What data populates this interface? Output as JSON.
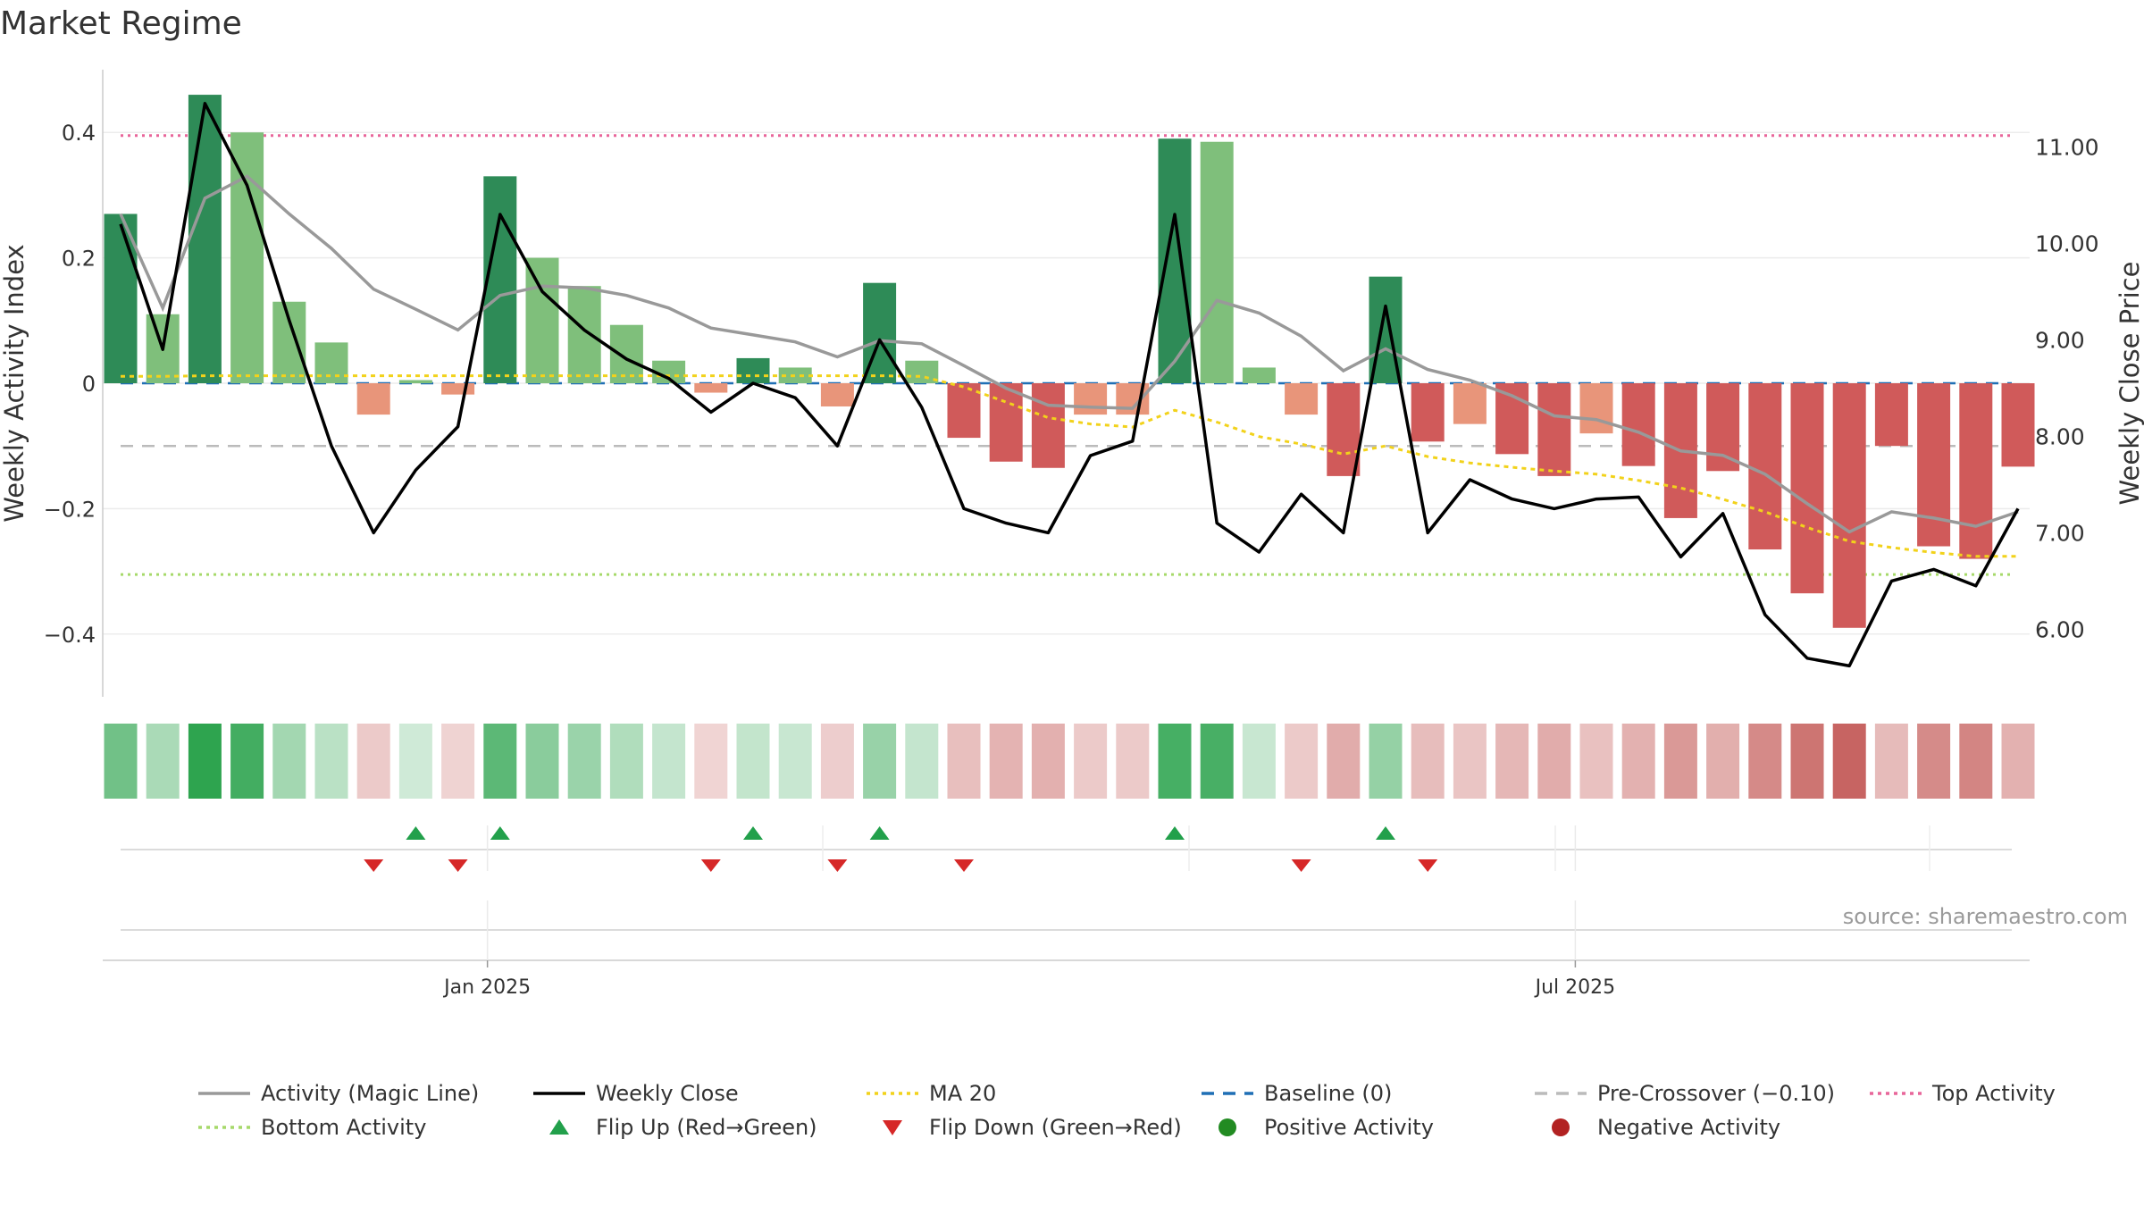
{
  "title": "Market Regime",
  "source": "source: sharemaestro.com",
  "chart_data": {
    "type": "bar",
    "xlabel": "",
    "ylabel": "Weekly Activity Index",
    "y2label": "Weekly Close Price",
    "ylim": [
      -0.5,
      0.5
    ],
    "y2lim": [
      5.3,
      11.8
    ],
    "yticks": [
      {
        "v": 0.4,
        "label": "0.4"
      },
      {
        "v": 0.2,
        "label": "0.2"
      },
      {
        "v": 0,
        "label": "0"
      },
      {
        "v": -0.2,
        "label": "−0.2"
      },
      {
        "v": -0.4,
        "label": "−0.4"
      }
    ],
    "y2ticks": [
      {
        "v": 11,
        "label": "11.00"
      },
      {
        "v": 10,
        "label": "10.00"
      },
      {
        "v": 9,
        "label": "9.00"
      },
      {
        "v": 8,
        "label": "8.00"
      },
      {
        "v": 7,
        "label": "7.00"
      },
      {
        "v": 6,
        "label": "6.00"
      }
    ],
    "xticks": [
      {
        "i": 8.7,
        "label": "Jan 2025"
      },
      {
        "i": 34.5,
        "label": "Jul 2025"
      }
    ],
    "bands": {
      "pre_crossover": -0.1,
      "top": 0.395,
      "bottom": -0.305,
      "baseline": 0
    },
    "activity": [
      0.27,
      0.11,
      0.46,
      0.4,
      0.13,
      0.065,
      -0.05,
      0.005,
      -0.018,
      0.33,
      0.2,
      0.155,
      0.093,
      0.036,
      -0.015,
      0.04,
      0.025,
      -0.037,
      0.16,
      0.036,
      -0.087,
      -0.125,
      -0.135,
      -0.05,
      -0.05,
      0.39,
      0.385,
      0.025,
      -0.05,
      -0.148,
      0.17,
      -0.093,
      -0.065,
      -0.113,
      -0.148,
      -0.08,
      -0.132,
      -0.215,
      -0.14,
      -0.265,
      -0.335,
      -0.39,
      -0.1,
      -0.26,
      -0.28,
      -0.133
    ],
    "magic_line": [
      0.27,
      0.12,
      0.295,
      0.33,
      0.27,
      0.215,
      0.15,
      0.118,
      0.085,
      0.14,
      0.155,
      0.152,
      0.14,
      0.12,
      0.088,
      0.077,
      0.066,
      0.042,
      0.068,
      0.063,
      0.028,
      -0.008,
      -0.035,
      -0.038,
      -0.04,
      0.035,
      0.132,
      0.112,
      0.075,
      0.02,
      0.055,
      0.022,
      0.005,
      -0.02,
      -0.052,
      -0.058,
      -0.078,
      -0.108,
      -0.115,
      -0.145,
      -0.192,
      -0.237,
      -0.205,
      -0.215,
      -0.228,
      -0.205
    ],
    "weekly_close": [
      10.2,
      8.9,
      11.45,
      10.6,
      9.2,
      7.9,
      7.0,
      7.65,
      8.1,
      10.3,
      9.5,
      9.1,
      8.8,
      8.6,
      8.25,
      8.55,
      8.4,
      7.9,
      9.0,
      8.3,
      7.25,
      7.1,
      7.0,
      7.8,
      7.95,
      10.3,
      7.1,
      6.8,
      7.4,
      7.0,
      9.35,
      7.0,
      7.55,
      7.35,
      7.25,
      7.35,
      7.37,
      6.75,
      7.2,
      6.15,
      5.7,
      5.62,
      6.5,
      6.62,
      6.45,
      7.25
    ],
    "ma20": [
      0.011,
      0.011,
      0.012,
      0.012,
      0.012,
      0.012,
      0.012,
      0.012,
      0.012,
      0.012,
      0.012,
      0.012,
      0.012,
      0.012,
      0.012,
      0.012,
      0.012,
      0.012,
      0.012,
      0.011,
      -0.006,
      -0.03,
      -0.055,
      -0.065,
      -0.07,
      -0.043,
      -0.062,
      -0.085,
      -0.097,
      -0.113,
      -0.1,
      -0.117,
      -0.127,
      -0.134,
      -0.14,
      -0.145,
      -0.155,
      -0.167,
      -0.185,
      -0.205,
      -0.23,
      -0.252,
      -0.262,
      -0.27,
      -0.276,
      -0.276
    ],
    "heat_strip": [
      0.27,
      0.11,
      0.46,
      0.4,
      0.13,
      0.065,
      -0.05,
      0.005,
      -0.018,
      0.33,
      0.2,
      0.155,
      0.093,
      0.036,
      -0.015,
      0.04,
      0.025,
      -0.037,
      0.16,
      0.036,
      -0.087,
      -0.125,
      -0.135,
      -0.05,
      -0.05,
      0.39,
      0.385,
      0.025,
      -0.05,
      -0.148,
      0.17,
      -0.093,
      -0.065,
      -0.113,
      -0.148,
      -0.08,
      -0.132,
      -0.215,
      -0.14,
      -0.265,
      -0.335,
      -0.39,
      -0.1,
      -0.26,
      -0.28,
      -0.133
    ],
    "flip_up": [
      7,
      9,
      15,
      18,
      25,
      30
    ],
    "flip_down": [
      6,
      8,
      14,
      17,
      20,
      28,
      31
    ],
    "colors": {
      "pos_strong": "#2e8b57",
      "pos_weak": "#7fbf7b",
      "neg_strong": "#d05a5a",
      "neg_weak": "#e8957a",
      "magic_line": "#999999",
      "weekly_close": "#000000",
      "ma20": "#f2d21b",
      "baseline": "#1f6fb5",
      "pre_crossover": "#bbbbbb",
      "top": "#e8669a",
      "bottom": "#a6d96a",
      "flip_up": "#22a04b",
      "flip_down": "#d62828",
      "positive_dot": "#228b22",
      "negative_dot": "#b22222"
    },
    "legend": [
      {
        "label": "Activity (Magic Line)",
        "kind": "line",
        "color": "#999999"
      },
      {
        "label": "Weekly Close",
        "kind": "line",
        "color": "#000000"
      },
      {
        "label": "MA 20",
        "kind": "dotted",
        "color": "#f2d21b"
      },
      {
        "label": "Baseline (0)",
        "kind": "dashed",
        "color": "#1f6fb5"
      },
      {
        "label": "Pre-Crossover (−0.10)",
        "kind": "dashed",
        "color": "#bbbbbb"
      },
      {
        "label": "Top Activity",
        "kind": "dotted",
        "color": "#e8669a"
      },
      {
        "label": "Bottom Activity",
        "kind": "dotted",
        "color": "#a6d96a"
      },
      {
        "label": "Flip Up (Red→Green)",
        "kind": "tri-up",
        "color": "#22a04b"
      },
      {
        "label": "Flip Down (Green→Red)",
        "kind": "tri-down",
        "color": "#d62828"
      },
      {
        "label": "Positive Activity",
        "kind": "dot",
        "color": "#228b22"
      },
      {
        "label": "Negative Activity",
        "kind": "dot",
        "color": "#b22222"
      }
    ]
  }
}
